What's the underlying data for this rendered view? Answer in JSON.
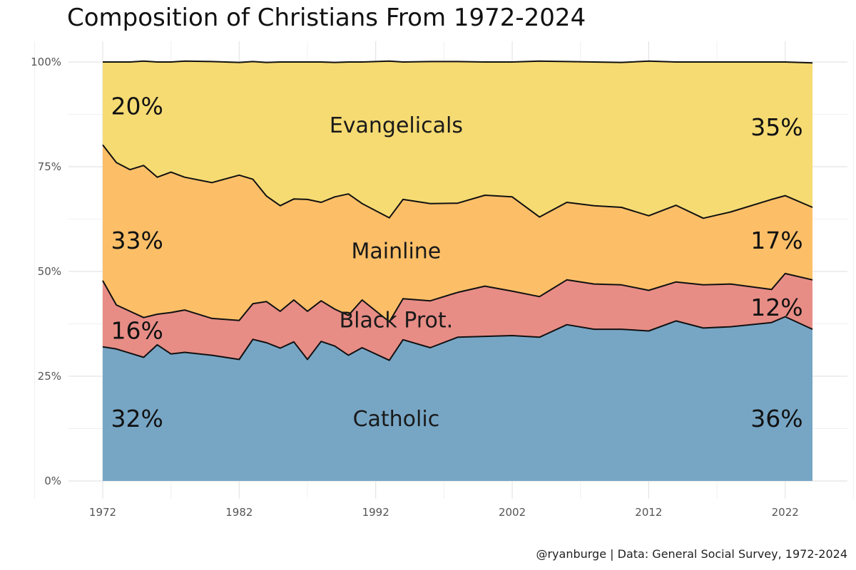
{
  "chart_data": {
    "type": "area",
    "stacked": true,
    "normalized": true,
    "title": "Composition of Christians From 1972-2024",
    "caption": "@ryanburge | Data: General Social Survey, 1972-2024",
    "xlabel": "",
    "ylabel": "",
    "xlim": [
      1972,
      2024
    ],
    "ylim": [
      0,
      1
    ],
    "x_ticks": [
      1972,
      1982,
      1992,
      2002,
      2012,
      2022
    ],
    "x_tick_labels": [
      "1972",
      "1982",
      "1992",
      "2002",
      "2012",
      "2022"
    ],
    "y_ticks": [
      0,
      0.25,
      0.5,
      0.75,
      1
    ],
    "y_tick_labels": [
      "0%",
      "25%",
      "50%",
      "75%",
      "100%"
    ],
    "x": [
      1972,
      1973,
      1974,
      1975,
      1976,
      1977,
      1978,
      1980,
      1982,
      1983,
      1984,
      1985,
      1986,
      1987,
      1988,
      1989,
      1990,
      1991,
      1993,
      1994,
      1996,
      1998,
      2000,
      2002,
      2004,
      2006,
      2008,
      2010,
      2012,
      2014,
      2016,
      2018,
      2021,
      2022,
      2024
    ],
    "series": [
      {
        "name": "Catholic",
        "color": "#77a6c5",
        "cumulative_top": [
          0.32,
          0.315,
          0.305,
          0.295,
          0.325,
          0.303,
          0.307,
          0.3,
          0.29,
          0.338,
          0.33,
          0.317,
          0.332,
          0.29,
          0.333,
          0.322,
          0.3,
          0.318,
          0.288,
          0.337,
          0.318,
          0.343,
          0.345,
          0.347,
          0.343,
          0.373,
          0.362,
          0.362,
          0.358,
          0.382,
          0.365,
          0.368,
          0.378,
          0.392,
          0.362
        ]
      },
      {
        "name": "Black Prot.",
        "color": "#e78d86",
        "cumulative_top": [
          0.478,
          0.42,
          0.405,
          0.39,
          0.398,
          0.402,
          0.408,
          0.388,
          0.383,
          0.423,
          0.428,
          0.405,
          0.432,
          0.405,
          0.43,
          0.41,
          0.395,
          0.432,
          0.38,
          0.435,
          0.43,
          0.45,
          0.465,
          0.453,
          0.44,
          0.48,
          0.47,
          0.468,
          0.455,
          0.475,
          0.468,
          0.47,
          0.457,
          0.495,
          0.48
        ]
      },
      {
        "name": "Mainline",
        "color": "#fcbf68",
        "cumulative_top": [
          0.802,
          0.76,
          0.743,
          0.753,
          0.725,
          0.737,
          0.725,
          0.712,
          0.73,
          0.72,
          0.68,
          0.657,
          0.673,
          0.672,
          0.665,
          0.678,
          0.685,
          0.662,
          0.628,
          0.672,
          0.662,
          0.663,
          0.682,
          0.678,
          0.63,
          0.665,
          0.657,
          0.653,
          0.633,
          0.658,
          0.627,
          0.642,
          0.672,
          0.681,
          0.653
        ]
      },
      {
        "name": "Evangelicals",
        "color": "#f6db73",
        "cumulative_top": [
          1.0,
          1.0,
          1.0,
          1.002,
          1.0,
          1.0,
          1.002,
          1.001,
          0.999,
          1.001,
          0.999,
          1.0,
          1.0,
          1.0,
          1.0,
          0.999,
          1.0,
          1.0,
          1.002,
          1.0,
          1.001,
          1.001,
          1.0,
          1.0,
          1.002,
          1.001,
          1.0,
          0.999,
          1.002,
          1.0,
          1.0,
          1.0,
          1.0,
          1.0,
          0.998
        ]
      }
    ],
    "annotations": {
      "series_labels": [
        {
          "text": "Evangelicals",
          "x": 1993.5,
          "y": 0.85
        },
        {
          "text": "Mainline",
          "x": 1993.5,
          "y": 0.55
        },
        {
          "text": "Black Prot.",
          "x": 1993.5,
          "y": 0.385
        },
        {
          "text": "Catholic",
          "x": 1993.5,
          "y": 0.15
        }
      ],
      "start_values": [
        {
          "text": "20%",
          "x": 1972.6,
          "y": 0.895
        },
        {
          "text": "33%",
          "x": 1972.6,
          "y": 0.575
        },
        {
          "text": "16%",
          "x": 1972.6,
          "y": 0.36
        },
        {
          "text": "32%",
          "x": 1972.6,
          "y": 0.15
        }
      ],
      "end_values": [
        {
          "text": "35%",
          "x": 2023.3,
          "y": 0.845
        },
        {
          "text": "17%",
          "x": 2023.3,
          "y": 0.575
        },
        {
          "text": "12%",
          "x": 2023.3,
          "y": 0.415
        },
        {
          "text": "36%",
          "x": 2023.3,
          "y": 0.15
        }
      ]
    }
  }
}
